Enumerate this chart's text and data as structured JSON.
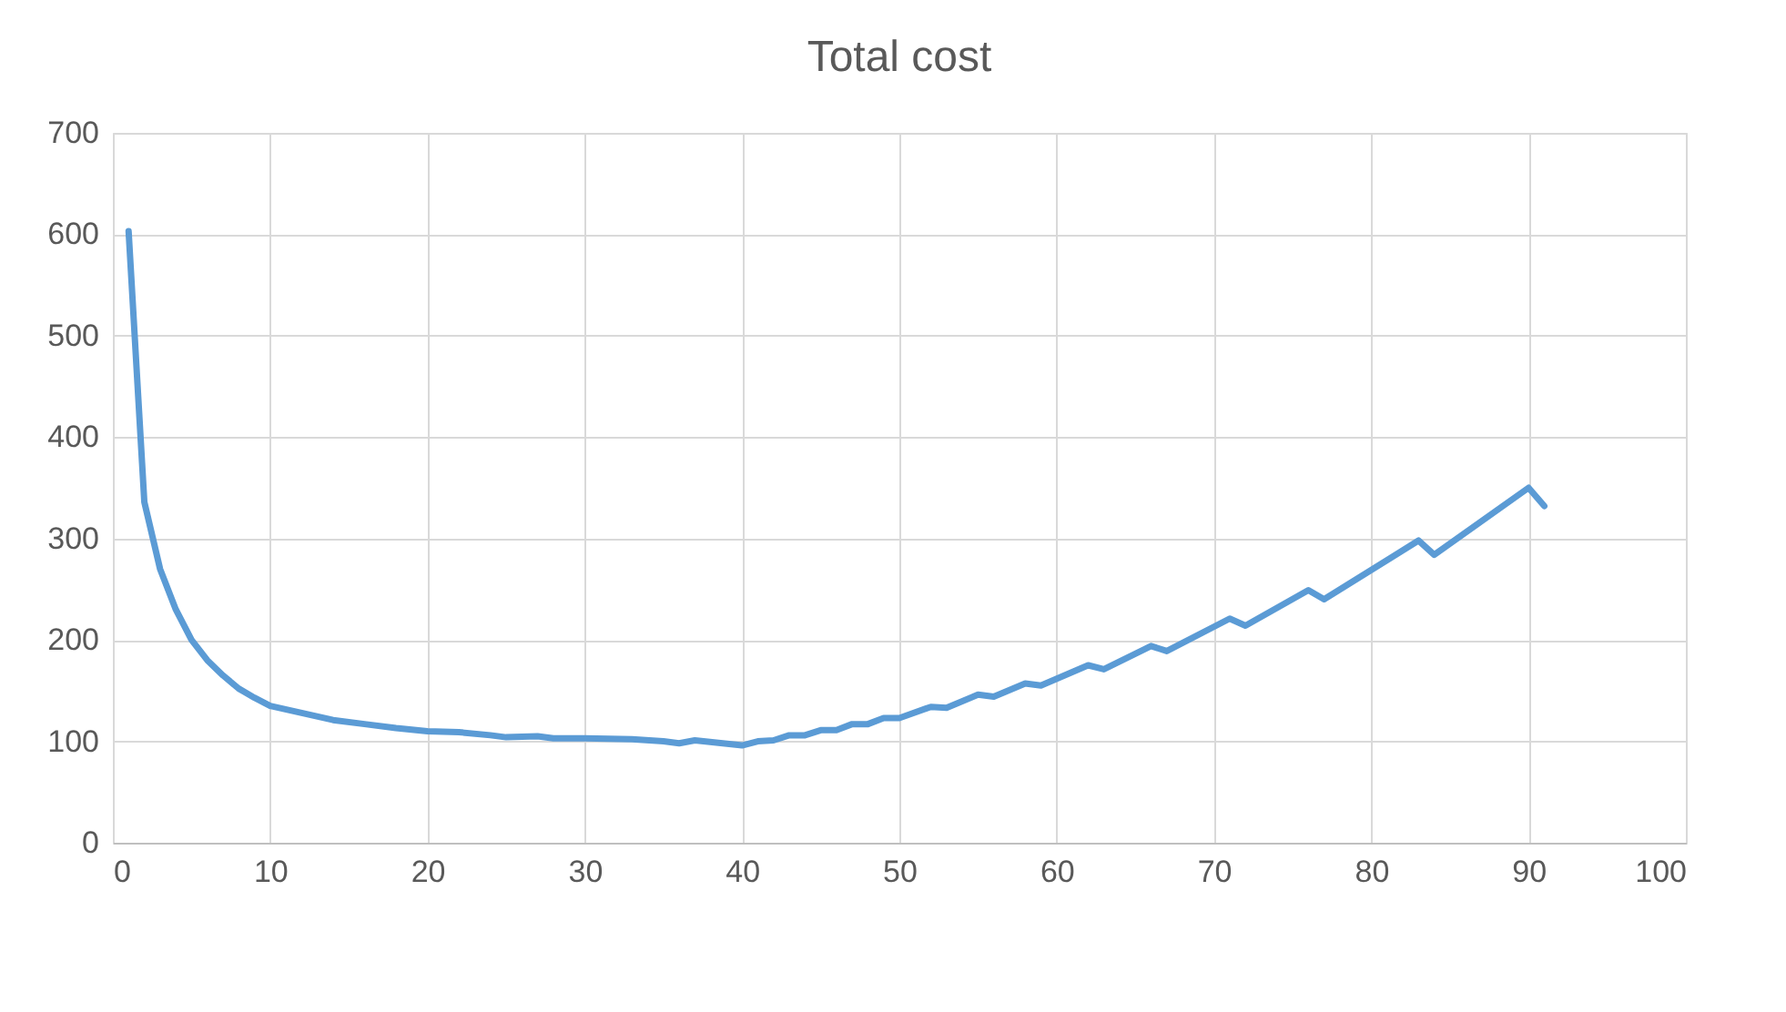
{
  "chart_data": {
    "type": "line",
    "title": "Total cost",
    "x": [
      1,
      2,
      3,
      4,
      5,
      6,
      7,
      8,
      9,
      10,
      12,
      14,
      16,
      18,
      20,
      22,
      24,
      25,
      27,
      28,
      30,
      33,
      35,
      36,
      37,
      40,
      41,
      42,
      43,
      44,
      45,
      46,
      47,
      48,
      49,
      50,
      52,
      53,
      55,
      56,
      58,
      59,
      62,
      63,
      66,
      67,
      71,
      72,
      76,
      77,
      83,
      84,
      90,
      91
    ],
    "series": [
      {
        "color": "#5b9bd5",
        "values": [
          603,
          336,
          270,
          230,
          200,
          180,
          165,
          152,
          143,
          135,
          128,
          121,
          117,
          113,
          110,
          109,
          106,
          104,
          105,
          103,
          103,
          102,
          100,
          98,
          101,
          96,
          100,
          101,
          106,
          106,
          111,
          111,
          117,
          117,
          123,
          123,
          134,
          133,
          146,
          144,
          157,
          155,
          175,
          171,
          194,
          189,
          221,
          214,
          249,
          240,
          298,
          284,
          350,
          332
        ]
      }
    ],
    "xlim": [
      0,
      100
    ],
    "xticks": [
      0,
      10,
      20,
      30,
      40,
      50,
      60,
      70,
      80,
      90,
      100
    ],
    "ylim": [
      0,
      700
    ],
    "yticks": [
      0,
      100,
      200,
      300,
      400,
      500,
      600,
      700
    ],
    "grid": true,
    "marker": "none",
    "line_style": "solid"
  }
}
